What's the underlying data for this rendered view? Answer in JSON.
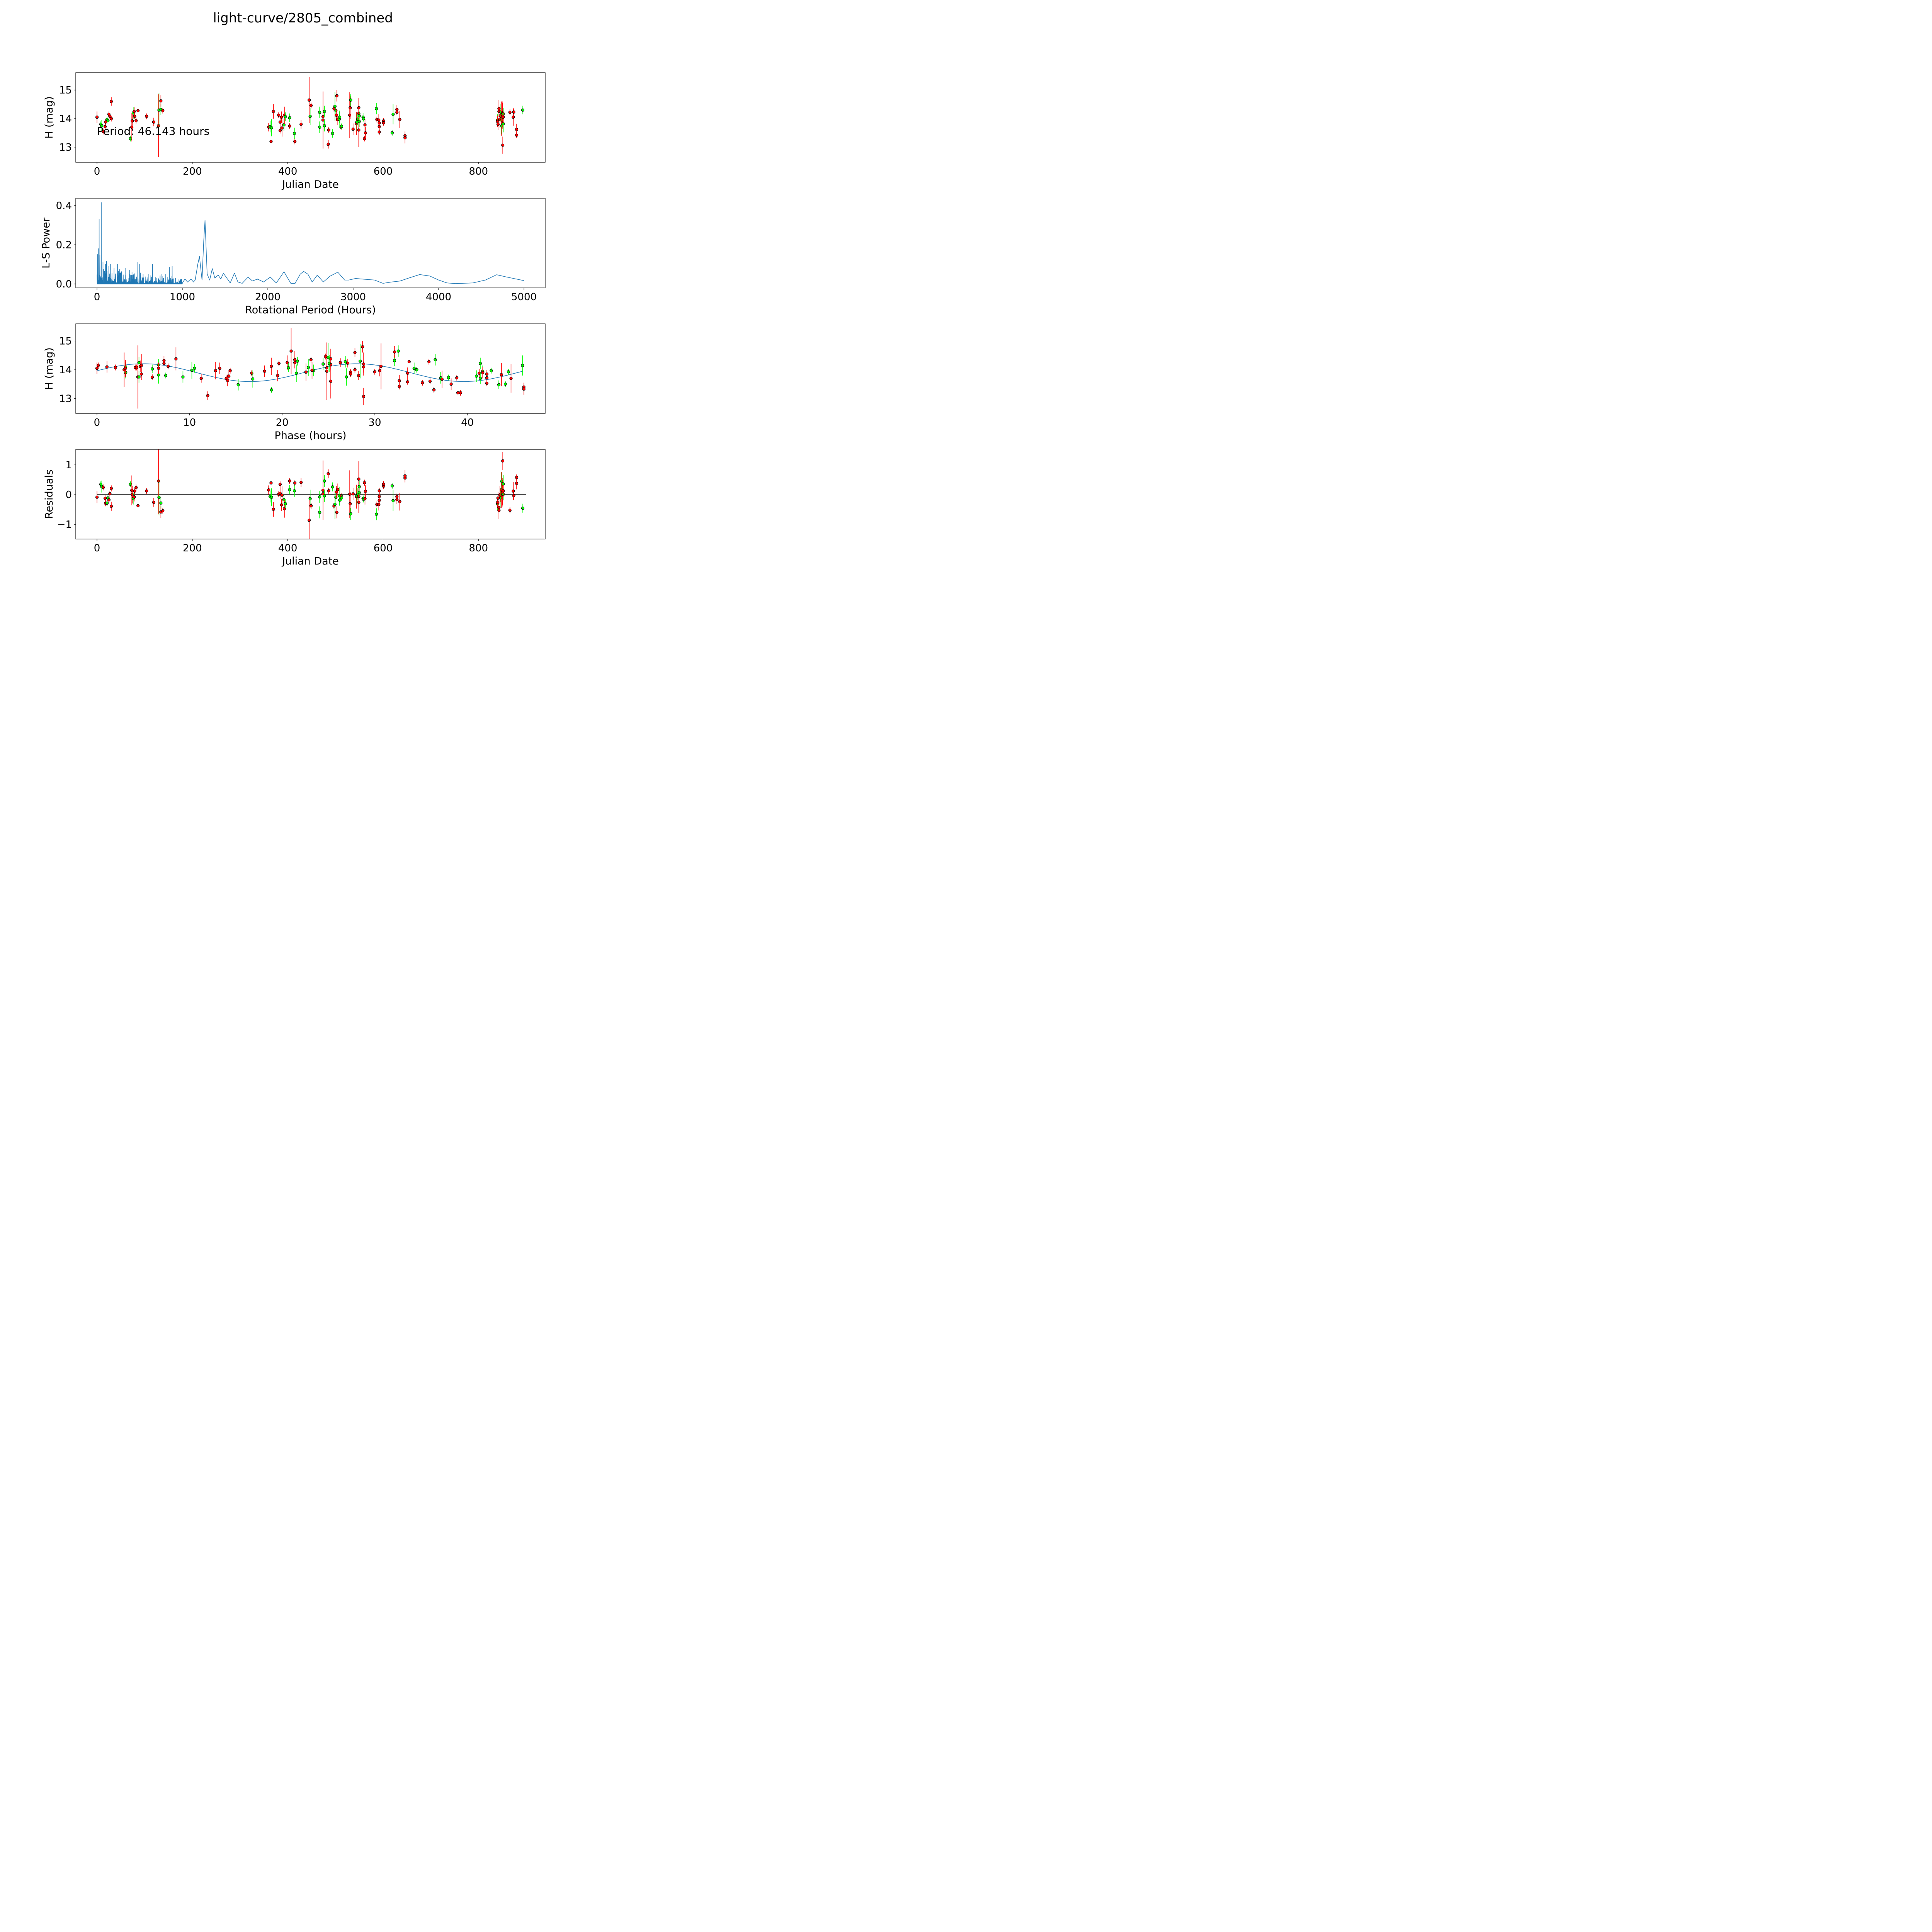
{
  "chart_data": {
    "title": "light-curve/2805_combined",
    "annotation": "Period: 46.143 hours",
    "period_hours": 46.143,
    "colors": {
      "band_a": "#ff0000",
      "band_b": "#00ff00",
      "model": "#1f77b4",
      "periodogram": "#1f77b4"
    },
    "panels": [
      {
        "type": "scatter",
        "xlabel": "Julian Date",
        "ylabel": "H (mag)",
        "xlim": [
          -44.6,
          940
        ],
        "ylim": [
          12.47,
          15.61
        ],
        "xticks": [
          0,
          200,
          400,
          600,
          800
        ],
        "xtick_labels": [
          "0",
          "200",
          "400",
          "600",
          "800"
        ],
        "yticks": [
          13,
          14,
          15
        ],
        "ytick_labels": [
          "13",
          "14",
          "15"
        ]
      },
      {
        "type": "line",
        "xlabel": "Rotational Period (Hours)",
        "ylabel": "L-S Power",
        "xlim": [
          -249,
          5249
        ],
        "ylim": [
          -0.02,
          0.437
        ],
        "xticks": [
          0,
          1000,
          2000,
          3000,
          4000,
          5000
        ],
        "xtick_labels": [
          "0",
          "1000",
          "2000",
          "3000",
          "4000",
          "5000"
        ],
        "yticks": [
          0,
          0.2,
          0.4
        ],
        "ytick_labels": [
          "0.0",
          "0.2",
          "0.4"
        ]
      },
      {
        "type": "scatter",
        "xlabel": "Phase (hours)",
        "ylabel": "H (mag)",
        "xlim": [
          -2.29,
          48.4
        ],
        "ylim": [
          12.48,
          15.6
        ],
        "xticks": [
          0,
          10,
          20,
          30,
          40
        ],
        "xtick_labels": [
          "0",
          "10",
          "20",
          "30",
          "40"
        ],
        "yticks": [
          13,
          14,
          15
        ],
        "ytick_labels": [
          "13",
          "14",
          "15"
        ]
      },
      {
        "type": "scatter",
        "xlabel": "Julian Date",
        "ylabel": "Residuals",
        "xlim": [
          -44.6,
          940
        ],
        "ylim": [
          -1.49,
          1.52
        ],
        "xticks": [
          0,
          200,
          400,
          600,
          800
        ],
        "xtick_labels": [
          "0",
          "200",
          "400",
          "600",
          "800"
        ],
        "yticks": [
          -1,
          0,
          1
        ],
        "ytick_labels": [
          "−1",
          "0",
          "1"
        ]
      }
    ],
    "model": {
      "mean": 13.9,
      "amplitude": 0.31,
      "peak_phase": 5
    },
    "observations": [
      [
        0,
        14.05,
        0.2,
        "r"
      ],
      [
        8,
        13.8,
        0.1,
        "g"
      ],
      [
        10,
        13.75,
        0.2,
        "g"
      ],
      [
        13,
        13.55,
        0.1,
        "r"
      ],
      [
        17,
        13.72,
        0.1,
        "r"
      ],
      [
        18,
        13.88,
        0.1,
        "r"
      ],
      [
        21,
        13.97,
        0.1,
        "g"
      ],
      [
        23,
        13.93,
        0.1,
        "g"
      ],
      [
        25,
        14.15,
        0.1,
        "r"
      ],
      [
        27,
        14.08,
        0.1,
        "r"
      ],
      [
        30,
        14.0,
        0.1,
        "r"
      ],
      [
        30,
        14.6,
        0.15,
        "r"
      ],
      [
        70,
        13.3,
        0.1,
        "g"
      ],
      [
        73,
        13.7,
        0.5,
        "r"
      ],
      [
        74,
        13.92,
        0.3,
        "r"
      ],
      [
        76,
        14.2,
        0.2,
        "g"
      ],
      [
        78,
        14.25,
        0.15,
        "r"
      ],
      [
        79,
        14.08,
        0.1,
        "r"
      ],
      [
        82,
        13.93,
        0.1,
        "r"
      ],
      [
        86,
        14.28,
        0.05,
        "r"
      ],
      [
        104,
        14.08,
        0.1,
        "r"
      ],
      [
        119,
        13.88,
        0.15,
        "r"
      ],
      [
        129,
        13.75,
        1.1,
        "r"
      ],
      [
        130,
        14.3,
        0.6,
        "g"
      ],
      [
        134,
        14.32,
        0.2,
        "g"
      ],
      [
        134,
        14.62,
        0.2,
        "r"
      ],
      [
        138,
        14.28,
        0.1,
        "r"
      ],
      [
        360,
        13.7,
        0.15,
        "r"
      ],
      [
        363,
        13.72,
        0.2,
        "g"
      ],
      [
        365,
        13.2,
        0.05,
        "r"
      ],
      [
        366,
        13.68,
        0.3,
        "g"
      ],
      [
        370,
        14.25,
        0.25,
        "r"
      ],
      [
        381,
        14.12,
        0.1,
        "r"
      ],
      [
        384,
        13.88,
        0.2,
        "r"
      ],
      [
        384,
        13.58,
        0.1,
        "r"
      ],
      [
        387,
        14.05,
        0.2,
        "r"
      ],
      [
        388,
        13.67,
        0.3,
        "r"
      ],
      [
        392,
        13.78,
        0.2,
        "g"
      ],
      [
        393,
        14.12,
        0.3,
        "r"
      ],
      [
        395,
        14.07,
        0.15,
        "g"
      ],
      [
        404,
        13.74,
        0.1,
        "r"
      ],
      [
        404,
        14.03,
        0.15,
        "g"
      ],
      [
        414,
        13.48,
        0.2,
        "g"
      ],
      [
        415,
        13.2,
        0.1,
        "r"
      ],
      [
        428,
        13.8,
        0.15,
        "r"
      ],
      [
        445,
        14.65,
        0.8,
        "r"
      ],
      [
        447,
        14.08,
        0.3,
        "g"
      ],
      [
        449,
        14.46,
        0.1,
        "r"
      ],
      [
        467,
        14.22,
        0.2,
        "g"
      ],
      [
        467,
        13.7,
        0.2,
        "g"
      ],
      [
        474,
        14.07,
        0.3,
        "r"
      ],
      [
        474,
        13.95,
        1.0,
        "r"
      ],
      [
        477,
        13.75,
        0.2,
        "g"
      ],
      [
        477,
        14.25,
        0.2,
        "g"
      ],
      [
        485,
        13.1,
        0.15,
        "r"
      ],
      [
        486,
        13.6,
        0.1,
        "r"
      ],
      [
        494,
        13.48,
        0.15,
        "g"
      ],
      [
        497,
        14.35,
        0.1,
        "r"
      ],
      [
        499,
        14.43,
        0.5,
        "g"
      ],
      [
        501,
        14.28,
        0.2,
        "g"
      ],
      [
        502,
        14.12,
        0.2,
        "r"
      ],
      [
        503,
        14.8,
        0.2,
        "r"
      ],
      [
        505,
        13.97,
        0.2,
        "r"
      ],
      [
        508,
        13.98,
        0.3,
        "g"
      ],
      [
        509,
        14.05,
        0.2,
        "g"
      ],
      [
        512,
        13.7,
        0.1,
        "r"
      ],
      [
        513,
        13.73,
        0.1,
        "g"
      ],
      [
        530,
        14.12,
        0.8,
        "r"
      ],
      [
        531,
        14.38,
        0.4,
        "r"
      ],
      [
        532,
        14.65,
        0.2,
        "g"
      ],
      [
        537,
        13.63,
        0.2,
        "r"
      ],
      [
        544,
        13.83,
        0.4,
        "r"
      ],
      [
        545,
        13.88,
        0.3,
        "g"
      ],
      [
        547,
        13.98,
        0.2,
        "g"
      ],
      [
        549,
        14.38,
        0.35,
        "r"
      ],
      [
        549,
        13.6,
        0.6,
        "r"
      ],
      [
        549,
        14.18,
        0.2,
        "r"
      ],
      [
        550,
        14.1,
        0.15,
        "g"
      ],
      [
        550,
        13.9,
        0.2,
        "g"
      ],
      [
        558,
        14.05,
        0.15,
        "g"
      ],
      [
        559,
        14.0,
        0.1,
        "g"
      ],
      [
        561,
        13.3,
        0.1,
        "r"
      ],
      [
        562,
        13.78,
        0.2,
        "r"
      ],
      [
        563,
        13.5,
        0.2,
        "r"
      ],
      [
        586,
        14.35,
        0.2,
        "g"
      ],
      [
        587,
        13.97,
        0.1,
        "r"
      ],
      [
        591,
        13.95,
        0.2,
        "r"
      ],
      [
        592,
        13.85,
        0.15,
        "r"
      ],
      [
        592,
        13.72,
        0.2,
        "r"
      ],
      [
        592,
        13.53,
        0.1,
        "r"
      ],
      [
        601,
        13.92,
        0.1,
        "r"
      ],
      [
        601,
        13.85,
        0.1,
        "r"
      ],
      [
        619,
        13.5,
        0.1,
        "g"
      ],
      [
        621,
        14.15,
        0.35,
        "g"
      ],
      [
        629,
        14.32,
        0.15,
        "r"
      ],
      [
        629,
        14.22,
        0.1,
        "r"
      ],
      [
        635,
        13.97,
        0.3,
        "r"
      ],
      [
        646,
        13.4,
        0.15,
        "r"
      ],
      [
        646,
        13.33,
        0.2,
        "r"
      ],
      [
        840,
        13.95,
        0.2,
        "g"
      ],
      [
        840,
        13.9,
        0.2,
        "r"
      ],
      [
        841,
        13.8,
        0.2,
        "r"
      ],
      [
        843,
        14.35,
        0.3,
        "r"
      ],
      [
        843,
        14.25,
        0.2,
        "r"
      ],
      [
        845,
        13.98,
        0.3,
        "r"
      ],
      [
        846,
        14.1,
        0.2,
        "r"
      ],
      [
        847,
        14.22,
        0.3,
        "g"
      ],
      [
        848,
        14.0,
        0.6,
        "r"
      ],
      [
        849,
        13.75,
        0.3,
        "g"
      ],
      [
        850,
        14.15,
        0.4,
        "r"
      ],
      [
        850,
        13.85,
        0.2,
        "r"
      ],
      [
        851,
        14.1,
        0.2,
        "r"
      ],
      [
        851,
        14.2,
        0.4,
        "r"
      ],
      [
        851,
        13.07,
        0.3,
        "r"
      ],
      [
        852,
        13.82,
        0.3,
        "g"
      ],
      [
        852,
        14.17,
        0.2,
        "g"
      ],
      [
        852,
        14.05,
        0.2,
        "r"
      ],
      [
        866,
        14.22,
        0.1,
        "r"
      ],
      [
        873,
        14.05,
        0.3,
        "r"
      ],
      [
        874,
        14.23,
        0.15,
        "r"
      ],
      [
        880,
        13.62,
        0.2,
        "r"
      ],
      [
        880,
        13.42,
        0.1,
        "r"
      ],
      [
        893,
        14.3,
        0.15,
        "g"
      ]
    ],
    "periodogram_spikes": [
      [
        5,
        0.15
      ],
      [
        15,
        0.18
      ],
      [
        25,
        0.33
      ],
      [
        50,
        0.415
      ],
      [
        70,
        0.11
      ],
      [
        100,
        0.1
      ],
      [
        130,
        0.09
      ],
      [
        160,
        0.1
      ],
      [
        200,
        0.08
      ],
      [
        240,
        0.1
      ],
      [
        280,
        0.06
      ],
      [
        330,
        0.08
      ],
      [
        380,
        0.05
      ],
      [
        410,
        0.06
      ],
      [
        470,
        0.11
      ],
      [
        500,
        0.1
      ],
      [
        540,
        0.05
      ],
      [
        600,
        0.05
      ],
      [
        650,
        0.1
      ],
      [
        700,
        0.03
      ],
      [
        760,
        0.05
      ],
      [
        800,
        0.05
      ],
      [
        850,
        0.085
      ],
      [
        880,
        0.09
      ],
      [
        920,
        0.03
      ],
      [
        970,
        0.01
      ]
    ],
    "periodogram_curve": [
      [
        1000,
        0.005
      ],
      [
        1030,
        0.025
      ],
      [
        1060,
        0.01
      ],
      [
        1100,
        0.025
      ],
      [
        1130,
        0.01
      ],
      [
        1150,
        0.02
      ],
      [
        1180,
        0.1
      ],
      [
        1200,
        0.14
      ],
      [
        1230,
        0.02
      ],
      [
        1250,
        0.22
      ],
      [
        1265,
        0.325
      ],
      [
        1290,
        0.05
      ],
      [
        1320,
        0.02
      ],
      [
        1350,
        0.078
      ],
      [
        1380,
        0.03
      ],
      [
        1420,
        0.045
      ],
      [
        1450,
        0.025
      ],
      [
        1480,
        0.055
      ],
      [
        1520,
        0.03
      ],
      [
        1560,
        0.005
      ],
      [
        1610,
        0.055
      ],
      [
        1650,
        0.01
      ],
      [
        1700,
        0.003
      ],
      [
        1770,
        0.035
      ],
      [
        1820,
        0.015
      ],
      [
        1880,
        0.025
      ],
      [
        1950,
        0.01
      ],
      [
        2030,
        0.035
      ],
      [
        2100,
        0.005
      ],
      [
        2190,
        0.062
      ],
      [
        2270,
        0.003
      ],
      [
        2320,
        0.003
      ],
      [
        2380,
        0.05
      ],
      [
        2420,
        0.064
      ],
      [
        2470,
        0.05
      ],
      [
        2520,
        0.01
      ],
      [
        2580,
        0.045
      ],
      [
        2650,
        0.01
      ],
      [
        2730,
        0.04
      ],
      [
        2820,
        0.06
      ],
      [
        2900,
        0.02
      ],
      [
        2950,
        0.02
      ],
      [
        3030,
        0.028
      ],
      [
        3100,
        0.025
      ],
      [
        3250,
        0.02
      ],
      [
        3350,
        0.003
      ],
      [
        3450,
        0.01
      ],
      [
        3550,
        0.015
      ],
      [
        3650,
        0.03
      ],
      [
        3780,
        0.048
      ],
      [
        3900,
        0.04
      ],
      [
        4000,
        0.02
      ],
      [
        4100,
        0.005
      ],
      [
        4200,
        0.002
      ],
      [
        4400,
        0.005
      ],
      [
        4550,
        0.02
      ],
      [
        4680,
        0.047
      ],
      [
        4800,
        0.035
      ],
      [
        5000,
        0.017
      ]
    ]
  }
}
